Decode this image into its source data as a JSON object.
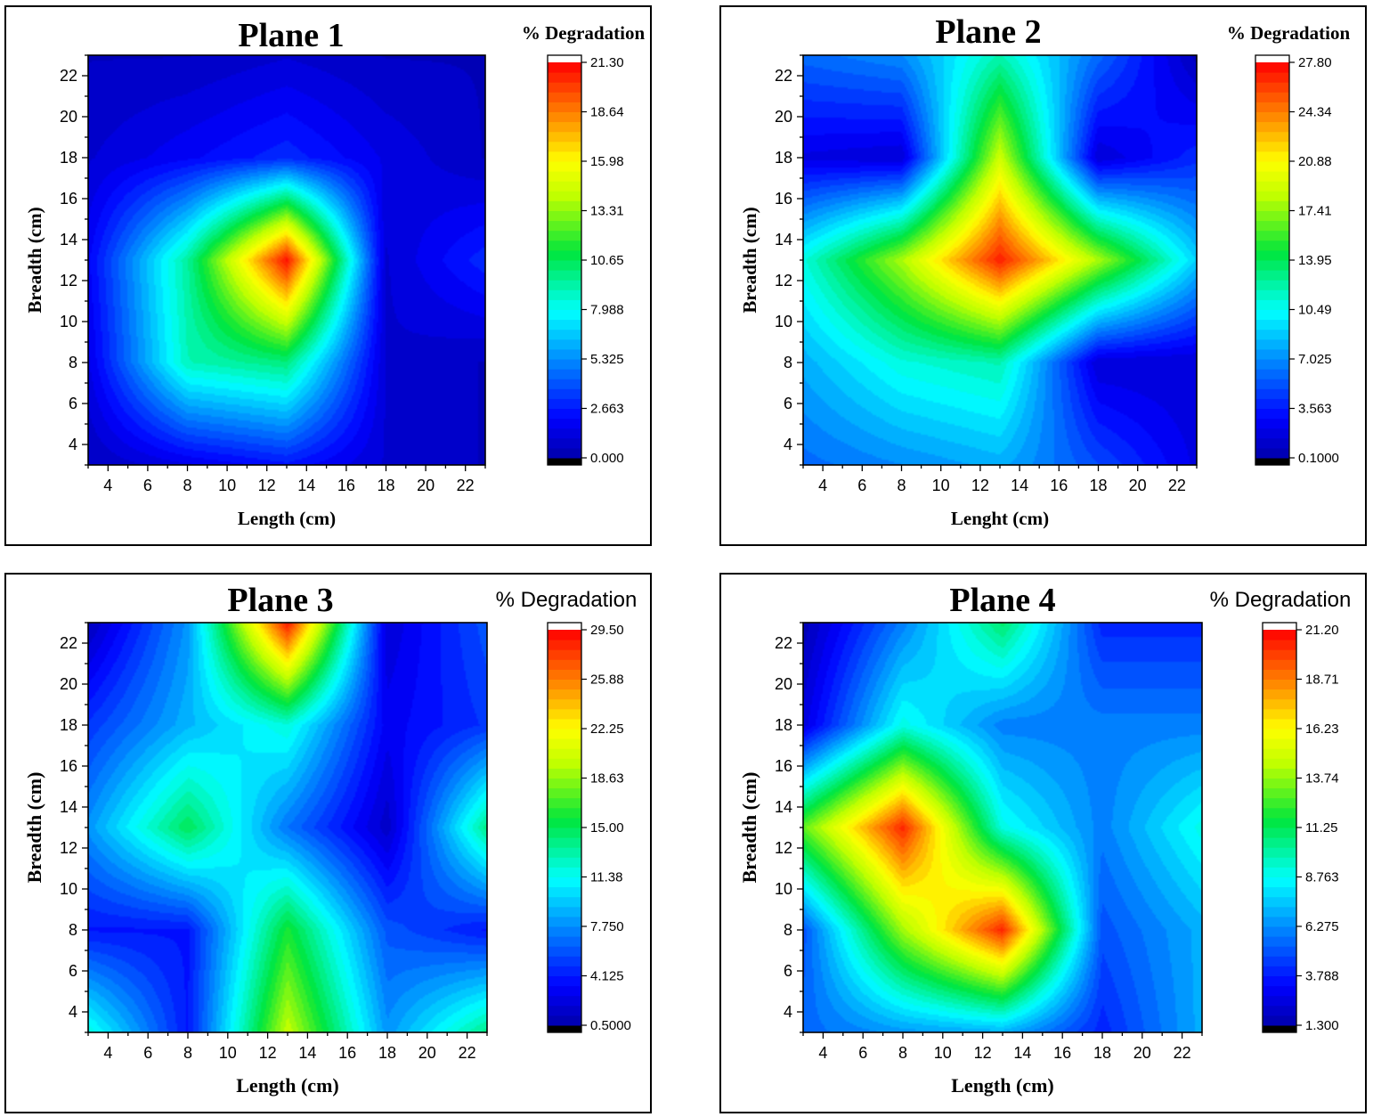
{
  "chart_data": [
    {
      "type": "heatmap",
      "title": "Plane 1",
      "xlabel": "Length (cm)",
      "ylabel": "Breadth (cm)",
      "colorbar_title": "% Degradation",
      "xlim": [
        3,
        23
      ],
      "ylim": [
        3,
        23
      ],
      "x_ticks": [
        "4",
        "6",
        "8",
        "10",
        "12",
        "14",
        "16",
        "18",
        "20",
        "22"
      ],
      "y_ticks": [
        "4",
        "6",
        "8",
        "10",
        "12",
        "14",
        "16",
        "18",
        "20",
        "22"
      ],
      "colorbar_ticks": [
        "21.30",
        "18.64",
        "15.98",
        "13.31",
        "10.65",
        "7.988",
        "5.325",
        "2.663",
        "0.000"
      ],
      "vmin": 0,
      "vmax": 21.3,
      "x": [
        3,
        8,
        13,
        18,
        23
      ],
      "y": [
        3,
        8,
        13,
        18,
        23
      ],
      "z": [
        [
          0.5,
          1.5,
          2.5,
          1.0,
          0.5
        ],
        [
          1.5,
          9.0,
          10.0,
          1.0,
          0.5
        ],
        [
          2.0,
          9.5,
          21.0,
          1.0,
          3.0
        ],
        [
          1.0,
          2.0,
          3.0,
          1.5,
          0.5
        ],
        [
          0.5,
          0.5,
          1.0,
          0.5,
          0.5
        ]
      ]
    },
    {
      "type": "heatmap",
      "title": "Plane 2",
      "xlabel": "Lenght (cm)",
      "ylabel": "Breadth (cm)",
      "colorbar_title": "% Degradation",
      "xlim": [
        3,
        23
      ],
      "ylim": [
        3,
        23
      ],
      "x_ticks": [
        "4",
        "6",
        "8",
        "10",
        "12",
        "14",
        "16",
        "18",
        "20",
        "22"
      ],
      "y_ticks": [
        "4",
        "6",
        "8",
        "10",
        "12",
        "14",
        "16",
        "18",
        "20",
        "22"
      ],
      "colorbar_ticks": [
        "27.80",
        "24.34",
        "20.88",
        "17.41",
        "13.95",
        "10.49",
        "7.025",
        "3.563",
        "0.1000"
      ],
      "vmin": 0.1,
      "vmax": 27.8,
      "x": [
        3,
        8,
        13,
        18,
        23
      ],
      "y": [
        3,
        8,
        13,
        18,
        23
      ],
      "z": [
        [
          6.0,
          7.0,
          8.0,
          5.0,
          2.0
        ],
        [
          8.0,
          11.0,
          12.0,
          1.5,
          1.5
        ],
        [
          11.0,
          18.0,
          27.0,
          18.0,
          9.0
        ],
        [
          2.0,
          1.5,
          19.0,
          1.5,
          4.0
        ],
        [
          6.0,
          7.0,
          12.0,
          6.0,
          0.5
        ]
      ]
    },
    {
      "type": "heatmap",
      "title": "Plane 3",
      "xlabel": "Length (cm)",
      "ylabel": "Breadth (cm)",
      "colorbar_title": "% Degradation",
      "xlim": [
        3,
        23
      ],
      "ylim": [
        3,
        23
      ],
      "x_ticks": [
        "4",
        "6",
        "8",
        "10",
        "12",
        "14",
        "16",
        "18",
        "20",
        "22"
      ],
      "y_ticks": [
        "4",
        "6",
        "8",
        "10",
        "12",
        "14",
        "16",
        "18",
        "20",
        "22"
      ],
      "colorbar_ticks": [
        "29.50",
        "25.88",
        "22.25",
        "18.63",
        "15.00",
        "11.38",
        "7.750",
        "4.125",
        "0.5000"
      ],
      "vmin": 0.5,
      "vmax": 29.5,
      "x": [
        3,
        8,
        13,
        18,
        23
      ],
      "y": [
        3,
        8,
        13,
        18,
        23
      ],
      "z": [
        [
          12.0,
          4.0,
          20.0,
          8.0,
          14.0
        ],
        [
          4.0,
          4.0,
          16.0,
          6.0,
          4.0
        ],
        [
          8.0,
          15.0,
          7.0,
          1.5,
          14.0
        ],
        [
          5.0,
          9.0,
          12.0,
          3.0,
          5.0
        ],
        [
          1.0,
          8.0,
          29.0,
          2.0,
          6.0
        ]
      ]
    },
    {
      "type": "heatmap",
      "title": "Plane 4",
      "xlabel": "Length (cm)",
      "ylabel": "Breadth (cm)",
      "colorbar_title": "% Degradation",
      "xlim": [
        3,
        23
      ],
      "ylim": [
        3,
        23
      ],
      "x_ticks": [
        "4",
        "6",
        "8",
        "10",
        "12",
        "14",
        "16",
        "18",
        "20",
        "22"
      ],
      "y_ticks": [
        "4",
        "6",
        "8",
        "10",
        "12",
        "14",
        "16",
        "18",
        "20",
        "22"
      ],
      "colorbar_ticks": [
        "21.20",
        "18.71",
        "16.23",
        "13.74",
        "11.25",
        "8.763",
        "6.275",
        "3.788",
        "1.300"
      ],
      "vmin": 1.3,
      "vmax": 21.2,
      "x": [
        3,
        8,
        13,
        18,
        23
      ],
      "y": [
        3,
        8,
        13,
        18,
        23
      ],
      "z": [
        [
          5.5,
          6.5,
          7.0,
          4.0,
          7.0
        ],
        [
          5.0,
          14.0,
          20.5,
          5.0,
          7.0
        ],
        [
          13.0,
          20.5,
          9.0,
          6.0,
          9.0
        ],
        [
          2.5,
          9.0,
          6.0,
          6.0,
          6.0
        ],
        [
          1.5,
          6.0,
          11.0,
          4.0,
          4.0
        ]
      ]
    }
  ]
}
